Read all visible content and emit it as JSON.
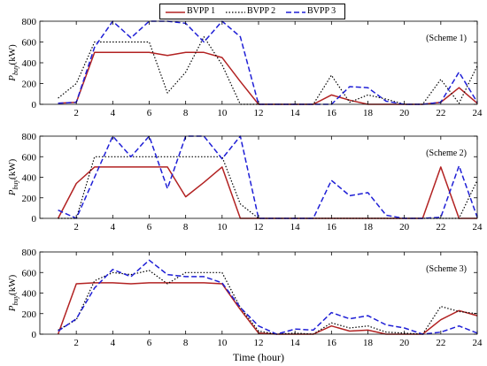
{
  "chart_data": [
    {
      "type": "line",
      "annotation": "(Scheme 1)",
      "ylabel": "P_buy(kW)",
      "xlabel": "",
      "xlim": [
        0,
        24
      ],
      "ylim": [
        0,
        800
      ],
      "yticks": [
        0,
        200,
        400,
        600,
        800
      ],
      "xticks": [
        2,
        4,
        6,
        8,
        10,
        12,
        14,
        16,
        18,
        20,
        22,
        24
      ],
      "grid": false,
      "series": [
        {
          "name": "BVPP 1",
          "x": [
            1,
            2,
            3,
            4,
            5,
            6,
            7,
            8,
            9,
            10,
            11,
            12,
            13,
            14,
            15,
            16,
            17,
            18,
            19,
            20,
            21,
            22,
            23,
            24
          ],
          "y": [
            10,
            20,
            500,
            500,
            500,
            500,
            470,
            500,
            500,
            450,
            220,
            0,
            0,
            0,
            0,
            90,
            40,
            0,
            0,
            0,
            0,
            20,
            160,
            10
          ]
        },
        {
          "name": "BVPP 2",
          "x": [
            1,
            2,
            3,
            4,
            5,
            6,
            7,
            8,
            9,
            10,
            11,
            12,
            13,
            14,
            15,
            16,
            17,
            18,
            19,
            20,
            21,
            22,
            23,
            24
          ],
          "y": [
            60,
            200,
            600,
            600,
            600,
            600,
            110,
            310,
            650,
            380,
            0,
            0,
            0,
            0,
            0,
            280,
            20,
            90,
            50,
            0,
            0,
            240,
            10,
            370
          ]
        },
        {
          "name": "BVPP 3",
          "x": [
            1,
            2,
            3,
            4,
            5,
            6,
            7,
            8,
            9,
            10,
            11,
            12,
            13,
            14,
            15,
            16,
            17,
            18,
            19,
            20,
            21,
            22,
            23,
            24
          ],
          "y": [
            10,
            20,
            550,
            800,
            640,
            800,
            800,
            780,
            600,
            800,
            650,
            0,
            0,
            0,
            0,
            0,
            170,
            160,
            30,
            0,
            0,
            20,
            310,
            20
          ]
        }
      ]
    },
    {
      "type": "line",
      "annotation": "(Scheme 2)",
      "ylabel": "P_buy(kW)",
      "xlabel": "",
      "xlim": [
        0,
        24
      ],
      "ylim": [
        0,
        800
      ],
      "yticks": [
        0,
        200,
        400,
        600,
        800
      ],
      "xticks": [
        2,
        4,
        6,
        8,
        10,
        12,
        14,
        16,
        18,
        20,
        22,
        24
      ],
      "grid": false,
      "series": [
        {
          "name": "BVPP 1",
          "x": [
            1,
            2,
            3,
            4,
            5,
            6,
            7,
            8,
            9,
            10,
            11,
            12,
            13,
            14,
            15,
            16,
            17,
            18,
            19,
            20,
            21,
            22,
            23,
            24
          ],
          "y": [
            0,
            340,
            500,
            500,
            500,
            500,
            500,
            210,
            350,
            500,
            0,
            0,
            0,
            0,
            0,
            0,
            0,
            0,
            0,
            0,
            0,
            500,
            0,
            0
          ]
        },
        {
          "name": "BVPP 2",
          "x": [
            1,
            2,
            3,
            4,
            5,
            6,
            7,
            8,
            9,
            10,
            11,
            12,
            13,
            14,
            15,
            16,
            17,
            18,
            19,
            20,
            21,
            22,
            23,
            24
          ],
          "y": [
            0,
            0,
            600,
            600,
            600,
            600,
            600,
            600,
            600,
            600,
            140,
            0,
            0,
            0,
            0,
            0,
            0,
            0,
            0,
            0,
            0,
            0,
            0,
            370
          ]
        },
        {
          "name": "BVPP 3",
          "x": [
            1,
            2,
            3,
            4,
            5,
            6,
            7,
            8,
            9,
            10,
            11,
            12,
            13,
            14,
            15,
            16,
            17,
            18,
            19,
            20,
            21,
            22,
            23,
            24
          ],
          "y": [
            80,
            0,
            400,
            800,
            600,
            800,
            290,
            800,
            800,
            580,
            800,
            0,
            0,
            0,
            0,
            370,
            220,
            250,
            30,
            0,
            0,
            10,
            510,
            10
          ]
        }
      ]
    },
    {
      "type": "line",
      "annotation": "(Scheme 3)",
      "ylabel": "P_buy(kW)",
      "xlabel": "Time (hour)",
      "xlim": [
        0,
        24
      ],
      "ylim": [
        0,
        800
      ],
      "yticks": [
        0,
        200,
        400,
        600,
        800
      ],
      "xticks": [
        2,
        4,
        6,
        8,
        10,
        12,
        14,
        16,
        18,
        20,
        22,
        24
      ],
      "grid": false,
      "series": [
        {
          "name": "BVPP 1",
          "x": [
            1,
            2,
            3,
            4,
            5,
            6,
            7,
            8,
            9,
            10,
            11,
            12,
            13,
            14,
            15,
            16,
            17,
            18,
            19,
            20,
            21,
            22,
            23,
            24
          ],
          "y": [
            0,
            490,
            500,
            500,
            490,
            500,
            500,
            500,
            500,
            490,
            240,
            10,
            0,
            0,
            0,
            80,
            30,
            40,
            0,
            0,
            0,
            140,
            230,
            180
          ]
        },
        {
          "name": "BVPP 2",
          "x": [
            1,
            2,
            3,
            4,
            5,
            6,
            7,
            8,
            9,
            10,
            11,
            12,
            13,
            14,
            15,
            16,
            17,
            18,
            19,
            20,
            21,
            22,
            23,
            24
          ],
          "y": [
            40,
            140,
            520,
            600,
            580,
            620,
            490,
            600,
            600,
            600,
            260,
            30,
            0,
            10,
            0,
            110,
            60,
            80,
            20,
            10,
            0,
            270,
            220,
            200
          ]
        },
        {
          "name": "BVPP 3",
          "x": [
            1,
            2,
            3,
            4,
            5,
            6,
            7,
            8,
            9,
            10,
            11,
            12,
            13,
            14,
            15,
            16,
            17,
            18,
            19,
            20,
            21,
            22,
            23,
            24
          ],
          "y": [
            30,
            150,
            450,
            630,
            560,
            720,
            580,
            560,
            560,
            500,
            260,
            80,
            0,
            50,
            40,
            210,
            150,
            180,
            90,
            60,
            0,
            20,
            80,
            10
          ]
        }
      ]
    }
  ],
  "legend": {
    "items": [
      {
        "label": "BVPP 1",
        "color": "#b22222",
        "dash": "solid"
      },
      {
        "label": "BVPP 2",
        "color": "#000000",
        "dash": "dotted"
      },
      {
        "label": "BVPP 3",
        "color": "#1f1fd6",
        "dash": "dashed"
      }
    ]
  }
}
